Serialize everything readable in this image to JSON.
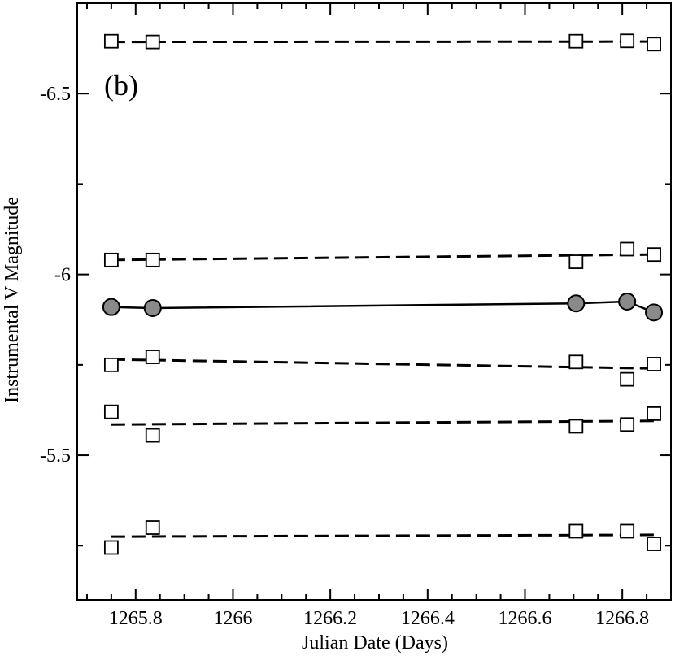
{
  "chart_data": {
    "type": "line",
    "panel_label": "(b)",
    "xlabel": "Julian Date (Days)",
    "ylabel": "Instrumental V Magnitude",
    "xlim": [
      1265.68,
      1266.9
    ],
    "ylim": [
      -6.75,
      -5.1
    ],
    "y_inverted": true,
    "grid": false,
    "legend": "none",
    "xticks": [
      {
        "value": 1265.8,
        "label": "1265.8"
      },
      {
        "value": 1266.0,
        "label": "1266"
      },
      {
        "value": 1266.2,
        "label": "1266.2"
      },
      {
        "value": 1266.4,
        "label": "1266.4"
      },
      {
        "value": 1266.6,
        "label": "1266.6"
      },
      {
        "value": 1266.8,
        "label": "1266.8"
      }
    ],
    "yticks": [
      {
        "value": -6.5,
        "label": "-6.5"
      },
      {
        "value": -6.0,
        "label": "-6"
      },
      {
        "value": -5.5,
        "label": "-5.5"
      }
    ],
    "x": [
      1265.75,
      1265.835,
      1266.705,
      1266.81,
      1266.865
    ],
    "series": [
      {
        "marker": "square",
        "fit_style": "dashed",
        "values": [
          -6.645,
          -6.643,
          -6.645,
          -6.646,
          -6.637
        ],
        "fit": [
          -6.643,
          -6.644
        ]
      },
      {
        "marker": "square",
        "fit_style": "dashed",
        "values": [
          -6.04,
          -6.04,
          -6.035,
          -6.07,
          -6.055
        ],
        "fit": [
          -6.04,
          -6.055
        ]
      },
      {
        "marker": "circle",
        "fit_style": "solid",
        "connected": true,
        "values": [
          -5.91,
          -5.907,
          -5.92,
          -5.925,
          -5.895
        ]
      },
      {
        "marker": "square",
        "fit_style": "dashed",
        "values": [
          -5.75,
          -5.772,
          -5.758,
          -5.71,
          -5.752
        ],
        "fit": [
          -5.765,
          -5.74
        ]
      },
      {
        "marker": "square",
        "fit_style": "dashed",
        "values": [
          -5.62,
          -5.555,
          -5.58,
          -5.585,
          -5.615
        ],
        "fit": [
          -5.585,
          -5.595
        ]
      },
      {
        "marker": "square",
        "fit_style": "dashed",
        "values": [
          -5.245,
          -5.3,
          -5.29,
          -5.29,
          -5.255
        ],
        "fit": [
          -5.275,
          -5.28
        ]
      }
    ]
  },
  "colors": {
    "axes": "#000000",
    "square_fill": "#ffffff",
    "circle_fill": "#8a8a8a"
  }
}
